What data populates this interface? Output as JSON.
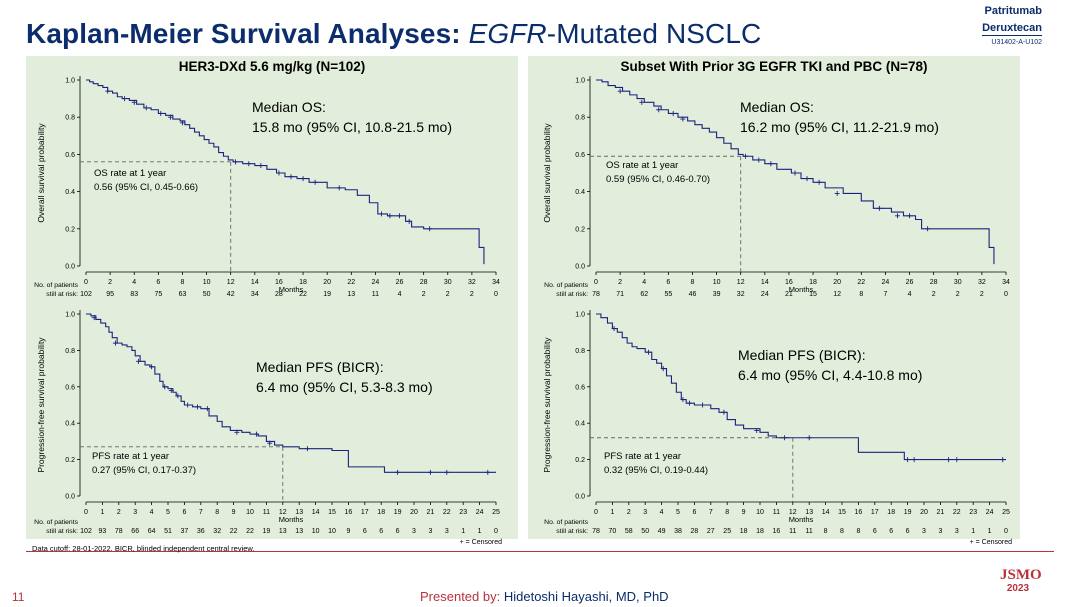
{
  "title": {
    "bold": "Kaplan-Meier Survival Analyses:",
    "italic": "EGFR",
    "rest": "-Mutated NSCLC"
  },
  "brand": {
    "line1": "Patritumab",
    "line2": "Deruxtecan",
    "code": "U31402-A-U102"
  },
  "footer": {
    "cutoff": "Data cutoff: 28-01-2022. BICR, blinded independent central review.",
    "page": "11",
    "presented_label": "Presented by:",
    "presenter": "Hidetoshi Hayashi, MD, PhD",
    "logo_text": "JSMO",
    "logo_year": "2023"
  },
  "colors": {
    "curve": "#1a237e",
    "panel_bg": "#e2eedb",
    "accent": "#b8323d",
    "title": "#0b2d6b"
  },
  "chart_data": [
    {
      "id": "os-left",
      "type": "line",
      "panel_title": "HER3-DXd 5.6 mg/kg (N=102)",
      "ylabel": "Overall survival probability",
      "xlabel": "Months",
      "ylim": [
        0,
        1.0
      ],
      "yticks": [
        "0.0",
        "0.2",
        "0.4",
        "0.6",
        "0.8",
        "1.0"
      ],
      "yvals": [
        0,
        0.2,
        0.4,
        0.6,
        0.8,
        1.0
      ],
      "xlim": [
        0,
        34
      ],
      "xticks": [
        0,
        2,
        4,
        6,
        8,
        10,
        12,
        14,
        16,
        18,
        20,
        22,
        24,
        26,
        28,
        30,
        32,
        34
      ],
      "risk_label1": "No. of patients",
      "risk_label2": "still at risk:",
      "at_risk": [
        "102",
        "95",
        "83",
        "75",
        "63",
        "50",
        "42",
        "34",
        "28",
        "22",
        "19",
        "13",
        "11",
        "4",
        "2",
        "2",
        "2",
        "0"
      ],
      "median_title": "Median OS:",
      "median_value": "15.8 mo (95% CI, 10.8-21.5 mo)",
      "rate_title": "OS rate at 1 year",
      "rate_value": "0.56 (95% CI, 0.45-0.66)",
      "ref": {
        "x": 12,
        "y": 0.56
      },
      "curve": [
        [
          0,
          1.0
        ],
        [
          0.3,
          0.99
        ],
        [
          0.6,
          0.98
        ],
        [
          1.0,
          0.97
        ],
        [
          1.4,
          0.96
        ],
        [
          1.8,
          0.94
        ],
        [
          2.2,
          0.93
        ],
        [
          2.6,
          0.91
        ],
        [
          3.0,
          0.9
        ],
        [
          3.6,
          0.89
        ],
        [
          4.2,
          0.87
        ],
        [
          4.8,
          0.85
        ],
        [
          5.4,
          0.84
        ],
        [
          6.0,
          0.82
        ],
        [
          6.6,
          0.81
        ],
        [
          7.2,
          0.79
        ],
        [
          7.8,
          0.78
        ],
        [
          8.2,
          0.76
        ],
        [
          8.6,
          0.74
        ],
        [
          9.0,
          0.72
        ],
        [
          9.4,
          0.7
        ],
        [
          9.8,
          0.68
        ],
        [
          10.2,
          0.66
        ],
        [
          10.6,
          0.64
        ],
        [
          11.0,
          0.61
        ],
        [
          11.4,
          0.59
        ],
        [
          11.8,
          0.57
        ],
        [
          12.2,
          0.56
        ],
        [
          13.0,
          0.55
        ],
        [
          14.0,
          0.54
        ],
        [
          15.0,
          0.52
        ],
        [
          15.8,
          0.5
        ],
        [
          16.5,
          0.48
        ],
        [
          17.5,
          0.47
        ],
        [
          18.5,
          0.45
        ],
        [
          20.0,
          0.42
        ],
        [
          21.5,
          0.41
        ],
        [
          22.5,
          0.38
        ],
        [
          23.5,
          0.34
        ],
        [
          24.2,
          0.28
        ],
        [
          25.0,
          0.27
        ],
        [
          26.5,
          0.24
        ],
        [
          27.0,
          0.21
        ],
        [
          28.0,
          0.2
        ],
        [
          32.5,
          0.2
        ],
        [
          32.6,
          0.1
        ],
        [
          33.0,
          0.1
        ],
        [
          33.0,
          0.01
        ]
      ],
      "censored": [
        [
          1.8,
          0.94
        ],
        [
          3.2,
          0.9
        ],
        [
          4.0,
          0.88
        ],
        [
          5.0,
          0.85
        ],
        [
          6.2,
          0.82
        ],
        [
          7.0,
          0.8
        ],
        [
          8.0,
          0.77
        ],
        [
          12.4,
          0.56
        ],
        [
          13.5,
          0.55
        ],
        [
          14.5,
          0.54
        ],
        [
          16.0,
          0.5
        ],
        [
          17.0,
          0.48
        ],
        [
          18.0,
          0.47
        ],
        [
          19.0,
          0.45
        ],
        [
          21.0,
          0.42
        ],
        [
          24.5,
          0.28
        ],
        [
          25.2,
          0.27
        ],
        [
          26.0,
          0.27
        ],
        [
          26.8,
          0.24
        ],
        [
          28.5,
          0.2
        ]
      ]
    },
    {
      "id": "os-right",
      "type": "line",
      "panel_title": "Subset With Prior 3G EGFR TKI and PBC (N=78)",
      "ylabel": "Overall survival probability",
      "xlabel": "Months",
      "ylim": [
        0,
        1.0
      ],
      "yticks": [
        "0.0",
        "0.2",
        "0.4",
        "0.6",
        "0.8",
        "1.0"
      ],
      "yvals": [
        0,
        0.2,
        0.4,
        0.6,
        0.8,
        1.0
      ],
      "xlim": [
        0,
        34
      ],
      "xticks": [
        0,
        2,
        4,
        6,
        8,
        10,
        12,
        14,
        16,
        18,
        20,
        22,
        24,
        26,
        28,
        30,
        32,
        34
      ],
      "risk_label1": "No. of patients",
      "risk_label2": "still at risk:",
      "at_risk": [
        "78",
        "71",
        "62",
        "55",
        "46",
        "39",
        "32",
        "24",
        "21",
        "15",
        "12",
        "8",
        "7",
        "4",
        "2",
        "2",
        "2",
        "0"
      ],
      "median_title": "Median OS:",
      "median_value": "16.2 mo (95% CI, 11.2-21.9 mo)",
      "rate_title": "OS rate at 1 year",
      "rate_value": "0.59 (95% CI, 0.46-0.70)",
      "ref": {
        "x": 12,
        "y": 0.59
      },
      "curve": [
        [
          0,
          1.0
        ],
        [
          0.5,
          0.99
        ],
        [
          1.0,
          0.97
        ],
        [
          1.6,
          0.96
        ],
        [
          2.2,
          0.94
        ],
        [
          2.8,
          0.92
        ],
        [
          3.4,
          0.9
        ],
        [
          4.0,
          0.88
        ],
        [
          4.8,
          0.86
        ],
        [
          5.4,
          0.84
        ],
        [
          6.0,
          0.82
        ],
        [
          6.8,
          0.8
        ],
        [
          7.6,
          0.78
        ],
        [
          8.2,
          0.76
        ],
        [
          8.8,
          0.74
        ],
        [
          9.4,
          0.72
        ],
        [
          10.0,
          0.69
        ],
        [
          10.6,
          0.66
        ],
        [
          11.2,
          0.63
        ],
        [
          11.8,
          0.6
        ],
        [
          12.2,
          0.59
        ],
        [
          13.0,
          0.57
        ],
        [
          14.0,
          0.55
        ],
        [
          15.0,
          0.52
        ],
        [
          16.2,
          0.5
        ],
        [
          17.0,
          0.47
        ],
        [
          18.0,
          0.45
        ],
        [
          19.0,
          0.42
        ],
        [
          20.5,
          0.39
        ],
        [
          22.0,
          0.35
        ],
        [
          23.0,
          0.31
        ],
        [
          24.5,
          0.29
        ],
        [
          25.5,
          0.27
        ],
        [
          26.5,
          0.25
        ],
        [
          27.0,
          0.2
        ],
        [
          32.5,
          0.2
        ],
        [
          32.6,
          0.1
        ],
        [
          33.0,
          0.1
        ],
        [
          33.0,
          0.01
        ]
      ],
      "censored": [
        [
          2.0,
          0.94
        ],
        [
          3.8,
          0.88
        ],
        [
          5.2,
          0.84
        ],
        [
          6.4,
          0.82
        ],
        [
          7.2,
          0.79
        ],
        [
          12.4,
          0.59
        ],
        [
          13.5,
          0.57
        ],
        [
          14.5,
          0.55
        ],
        [
          16.5,
          0.5
        ],
        [
          17.5,
          0.47
        ],
        [
          18.5,
          0.45
        ],
        [
          20.0,
          0.39
        ],
        [
          23.5,
          0.31
        ],
        [
          25.0,
          0.27
        ],
        [
          26.0,
          0.27
        ],
        [
          27.5,
          0.2
        ]
      ]
    },
    {
      "id": "pfs-left",
      "type": "line",
      "panel_title": "",
      "ylabel": "Progression-free survival probability",
      "xlabel": "Months",
      "ylim": [
        0,
        1.0
      ],
      "yticks": [
        "0.0",
        "0.2",
        "0.4",
        "0.6",
        "0.8",
        "1.0"
      ],
      "yvals": [
        0,
        0.2,
        0.4,
        0.6,
        0.8,
        1.0
      ],
      "xlim": [
        0,
        25
      ],
      "xticks": [
        0,
        1,
        2,
        3,
        4,
        5,
        6,
        7,
        8,
        9,
        10,
        11,
        12,
        13,
        14,
        15,
        16,
        17,
        18,
        19,
        20,
        21,
        22,
        23,
        24,
        25
      ],
      "risk_label1": "No. of patients",
      "risk_label2": "still at risk:",
      "at_risk": [
        "102",
        "93",
        "78",
        "66",
        "64",
        "51",
        "37",
        "36",
        "32",
        "22",
        "22",
        "19",
        "13",
        "13",
        "10",
        "10",
        "9",
        "6",
        "6",
        "6",
        "3",
        "3",
        "3",
        "1",
        "1",
        "0"
      ],
      "median_title": "Median PFS (BICR):",
      "median_value": "6.4 mo (95% CI, 5.3-8.3 mo)",
      "rate_title": "PFS rate at 1 year",
      "rate_value": "0.27 (95% CI, 0.17-0.37)",
      "censored_note": "+ = Censored",
      "ref": {
        "x": 12,
        "y": 0.27
      },
      "curve": [
        [
          0,
          1.0
        ],
        [
          0.3,
          0.99
        ],
        [
          0.6,
          0.97
        ],
        [
          0.9,
          0.95
        ],
        [
          1.2,
          0.93
        ],
        [
          1.4,
          0.9
        ],
        [
          1.6,
          0.87
        ],
        [
          1.9,
          0.84
        ],
        [
          2.2,
          0.83
        ],
        [
          2.5,
          0.82
        ],
        [
          2.8,
          0.8
        ],
        [
          3.0,
          0.77
        ],
        [
          3.3,
          0.74
        ],
        [
          3.6,
          0.72
        ],
        [
          3.9,
          0.71
        ],
        [
          4.2,
          0.67
        ],
        [
          4.5,
          0.63
        ],
        [
          4.7,
          0.6
        ],
        [
          5.0,
          0.59
        ],
        [
          5.3,
          0.57
        ],
        [
          5.5,
          0.55
        ],
        [
          5.8,
          0.52
        ],
        [
          6.0,
          0.5
        ],
        [
          6.5,
          0.49
        ],
        [
          7.0,
          0.48
        ],
        [
          7.5,
          0.44
        ],
        [
          8.0,
          0.41
        ],
        [
          8.3,
          0.38
        ],
        [
          8.8,
          0.36
        ],
        [
          9.5,
          0.35
        ],
        [
          10.0,
          0.34
        ],
        [
          10.5,
          0.33
        ],
        [
          11.0,
          0.3
        ],
        [
          11.5,
          0.28
        ],
        [
          12.0,
          0.27
        ],
        [
          13.0,
          0.26
        ],
        [
          15.0,
          0.25
        ],
        [
          16.0,
          0.16
        ],
        [
          18.0,
          0.16
        ],
        [
          18.2,
          0.13
        ],
        [
          24.0,
          0.13
        ],
        [
          25.0,
          0.13
        ]
      ],
      "censored": [
        [
          0.5,
          0.98
        ],
        [
          1.8,
          0.84
        ],
        [
          3.2,
          0.74
        ],
        [
          4.0,
          0.71
        ],
        [
          4.8,
          0.6
        ],
        [
          5.2,
          0.58
        ],
        [
          5.6,
          0.55
        ],
        [
          6.2,
          0.5
        ],
        [
          6.8,
          0.49
        ],
        [
          7.4,
          0.48
        ],
        [
          9.2,
          0.35
        ],
        [
          10.4,
          0.34
        ],
        [
          11.2,
          0.29
        ],
        [
          13.5,
          0.26
        ],
        [
          19.0,
          0.13
        ],
        [
          21.0,
          0.13
        ],
        [
          22.0,
          0.13
        ],
        [
          24.5,
          0.13
        ]
      ]
    },
    {
      "id": "pfs-right",
      "type": "line",
      "panel_title": "",
      "ylabel": "Progression-free survival probability",
      "xlabel": "Months",
      "ylim": [
        0,
        1.0
      ],
      "yticks": [
        "0.0",
        "0.2",
        "0.4",
        "0.6",
        "0.8",
        "1.0"
      ],
      "yvals": [
        0,
        0.2,
        0.4,
        0.6,
        0.8,
        1.0
      ],
      "xlim": [
        0,
        25
      ],
      "xticks": [
        0,
        1,
        2,
        3,
        4,
        5,
        6,
        7,
        8,
        9,
        10,
        11,
        12,
        13,
        14,
        15,
        16,
        17,
        18,
        19,
        20,
        21,
        22,
        23,
        24,
        25
      ],
      "risk_label1": "No. of patients",
      "risk_label2": "still at risk:",
      "at_risk": [
        "78",
        "70",
        "58",
        "50",
        "49",
        "38",
        "28",
        "27",
        "25",
        "18",
        "18",
        "16",
        "11",
        "11",
        "8",
        "8",
        "8",
        "6",
        "6",
        "6",
        "3",
        "3",
        "3",
        "1",
        "1",
        "0"
      ],
      "median_title": "Median PFS (BICR):",
      "median_value": "6.4 mo (95% CI, 4.4-10.8 mo)",
      "rate_title": "PFS rate at 1 year",
      "rate_value": "0.32 (95% CI, 0.19-0.44)",
      "censored_note": "+ = Censored",
      "ref": {
        "x": 12,
        "y": 0.32
      },
      "curve": [
        [
          0,
          1.0
        ],
        [
          0.3,
          0.98
        ],
        [
          0.7,
          0.95
        ],
        [
          1.0,
          0.92
        ],
        [
          1.3,
          0.9
        ],
        [
          1.6,
          0.87
        ],
        [
          1.9,
          0.84
        ],
        [
          2.2,
          0.82
        ],
        [
          2.5,
          0.81
        ],
        [
          3.0,
          0.79
        ],
        [
          3.4,
          0.75
        ],
        [
          3.7,
          0.73
        ],
        [
          4.0,
          0.7
        ],
        [
          4.3,
          0.66
        ],
        [
          4.6,
          0.62
        ],
        [
          4.9,
          0.57
        ],
        [
          5.2,
          0.53
        ],
        [
          5.5,
          0.51
        ],
        [
          6.0,
          0.5
        ],
        [
          7.0,
          0.48
        ],
        [
          7.5,
          0.46
        ],
        [
          8.0,
          0.42
        ],
        [
          8.5,
          0.39
        ],
        [
          9.0,
          0.37
        ],
        [
          10.0,
          0.35
        ],
        [
          10.5,
          0.33
        ],
        [
          11.0,
          0.32
        ],
        [
          15.0,
          0.32
        ],
        [
          16.0,
          0.24
        ],
        [
          18.5,
          0.24
        ],
        [
          18.8,
          0.2
        ],
        [
          25.0,
          0.2
        ]
      ],
      "censored": [
        [
          1.1,
          0.92
        ],
        [
          3.2,
          0.79
        ],
        [
          4.1,
          0.7
        ],
        [
          5.3,
          0.53
        ],
        [
          5.7,
          0.51
        ],
        [
          6.5,
          0.5
        ],
        [
          7.8,
          0.46
        ],
        [
          9.8,
          0.36
        ],
        [
          11.5,
          0.32
        ],
        [
          13.0,
          0.32
        ],
        [
          19.0,
          0.2
        ],
        [
          19.4,
          0.2
        ],
        [
          21.5,
          0.2
        ],
        [
          22.0,
          0.2
        ],
        [
          24.8,
          0.2
        ]
      ]
    }
  ]
}
